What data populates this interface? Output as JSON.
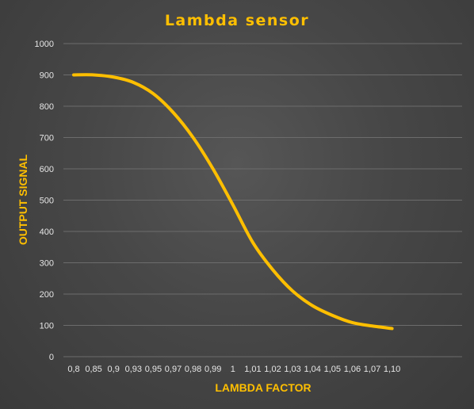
{
  "chart_data": {
    "type": "line",
    "title": "Lambda sensor",
    "xlabel": "LAMBDA FACTOR",
    "ylabel": "OUTPUT SIGNAL",
    "categories": [
      "0,8",
      "0,85",
      "0,9",
      "0,93",
      "0,95",
      "0,97",
      "0,98",
      "0,99",
      "1",
      "1,01",
      "1,02",
      "1,03",
      "1,04",
      "1,05",
      "1,06",
      "1,07",
      "1,10"
    ],
    "y_ticks": [
      "0",
      "100",
      "200",
      "300",
      "400",
      "500",
      "600",
      "700",
      "800",
      "900",
      "1000"
    ],
    "ylim": [
      0,
      1000
    ],
    "grid": true,
    "legend": "none",
    "series": [
      {
        "values": [
          900,
          900,
          893,
          876,
          840,
          780,
          700,
          600,
          485,
          365,
          278,
          210,
          163,
          132,
          109,
          98,
          90
        ]
      }
    ],
    "colors": {
      "line": "#ffbf00",
      "title": "#ffbf00",
      "grid": "#6c6c6c",
      "tick_text": "#e6e6e6"
    }
  }
}
